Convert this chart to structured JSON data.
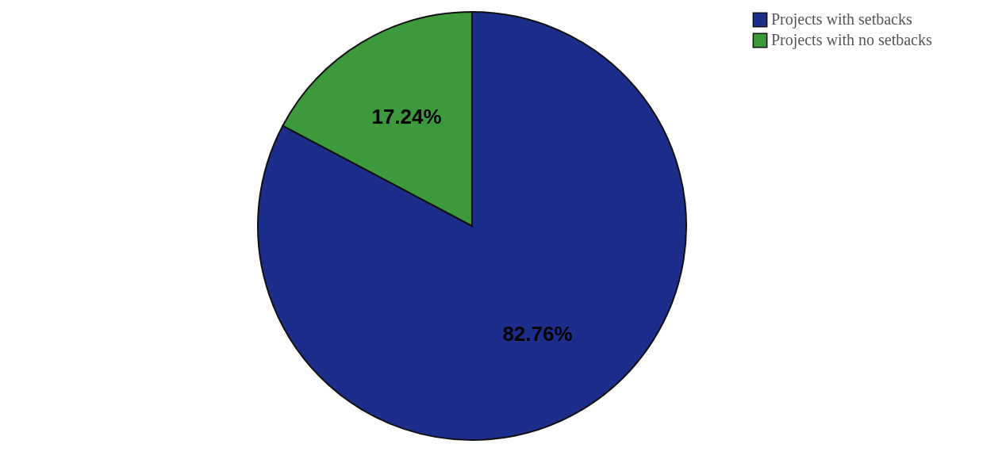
{
  "chart_data": {
    "type": "pie",
    "categories": [
      "Projects with setbacks",
      "Projects with no setbacks"
    ],
    "values": [
      82.76,
      17.24
    ],
    "colors": [
      "#1c2d8c",
      "#3c9a3c"
    ],
    "value_labels": [
      "82.76%",
      "17.24%"
    ],
    "legend": "top right"
  }
}
